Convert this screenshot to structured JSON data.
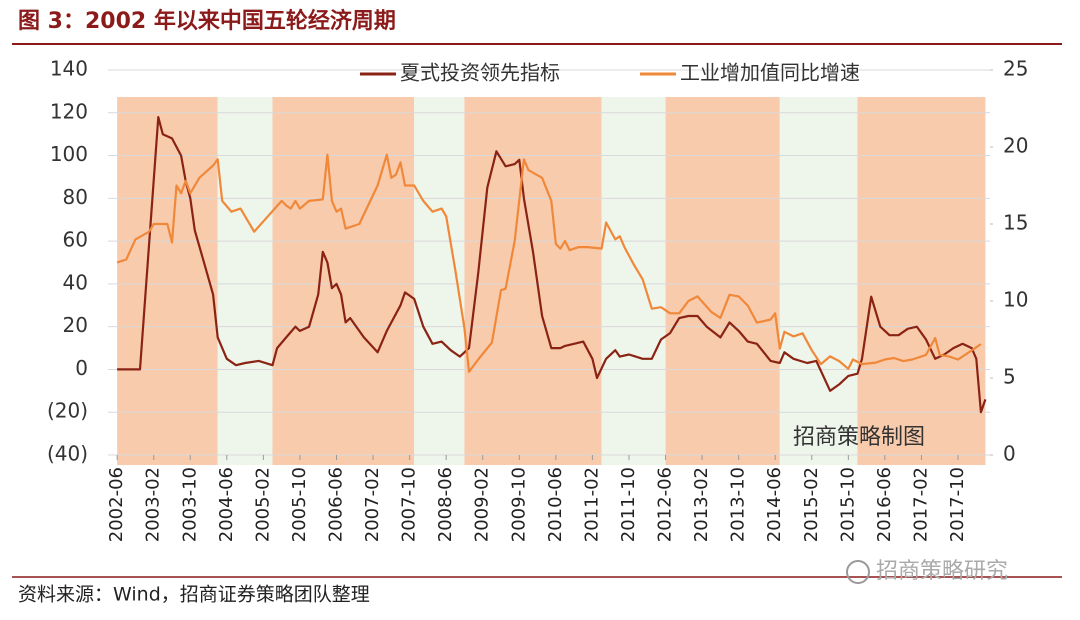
{
  "chart_data": {
    "type": "line",
    "title": "图 3：2002 年以来中国五轮经济周期",
    "source": "资料来源：Wind，招商证券策略团队整理",
    "annotation": "招商策略制图",
    "watermark": "招商策略研究",
    "xlim": [
      "2002-04",
      "2018-05"
    ],
    "xticks": [
      "2002-06",
      "2003-02",
      "2003-10",
      "2004-06",
      "2005-02",
      "2005-10",
      "2006-06",
      "2007-02",
      "2007-10",
      "2008-06",
      "2009-02",
      "2009-10",
      "2010-06",
      "2011-02",
      "2011-10",
      "2012-06",
      "2013-02",
      "2013-10",
      "2014-06",
      "2015-02",
      "2015-10",
      "2016-06",
      "2017-02",
      "2017-10"
    ],
    "ylim": [
      -40,
      140
    ],
    "yticks": [
      140,
      120,
      100,
      80,
      60,
      40,
      20,
      0,
      {
        "value": -20,
        "label": "(20)"
      },
      {
        "value": -40,
        "label": "(40)"
      }
    ],
    "y2lim": [
      0,
      25
    ],
    "y2ticks": [
      0,
      5,
      10,
      15,
      20,
      25
    ],
    "grid": true,
    "shaded_regions": [
      {
        "start": "2002-06",
        "end": "2004-04",
        "color": "#f8cbad"
      },
      {
        "start": "2004-04",
        "end": "2005-04",
        "color": "#eef5ea"
      },
      {
        "start": "2005-04",
        "end": "2007-11",
        "color": "#f8cbad"
      },
      {
        "start": "2007-11",
        "end": "2008-10",
        "color": "#eef5ea"
      },
      {
        "start": "2008-10",
        "end": "2011-04",
        "color": "#f8cbad"
      },
      {
        "start": "2011-04",
        "end": "2012-06",
        "color": "#eef5ea"
      },
      {
        "start": "2012-06",
        "end": "2014-07",
        "color": "#f8cbad"
      },
      {
        "start": "2014-07",
        "end": "2015-12",
        "color": "#eef5ea"
      },
      {
        "start": "2015-12",
        "end": "2018-04",
        "color": "#f8cbad"
      }
    ],
    "series": [
      {
        "name": "夏式投资领先指标",
        "color": "#8b2314",
        "x": [
          "2002-06",
          "2002-11",
          "2003-03",
          "2003-04",
          "2003-06",
          "2003-08",
          "2003-09",
          "2003-10",
          "2003-11",
          "2004-01",
          "2004-03",
          "2004-04",
          "2004-06",
          "2004-08",
          "2004-10",
          "2005-01",
          "2005-04",
          "2005-05",
          "2005-07",
          "2005-09",
          "2005-10",
          "2005-12",
          "2006-02",
          "2006-03",
          "2006-04",
          "2006-05",
          "2006-06",
          "2006-07",
          "2006-08",
          "2006-09",
          "2006-12",
          "2007-03",
          "2007-05",
          "2007-08",
          "2007-09",
          "2007-11",
          "2008-01",
          "2008-03",
          "2008-05",
          "2008-07",
          "2008-09",
          "2008-11",
          "2009-01",
          "2009-03",
          "2009-05",
          "2009-07",
          "2009-09",
          "2009-10",
          "2009-11",
          "2010-01",
          "2010-03",
          "2010-05",
          "2010-07",
          "2010-08",
          "2010-10",
          "2010-12",
          "2011-02",
          "2011-03",
          "2011-05",
          "2011-07",
          "2011-08",
          "2011-10",
          "2012-01",
          "2012-03",
          "2012-05",
          "2012-07",
          "2012-09",
          "2012-11",
          "2013-01",
          "2013-03",
          "2013-06",
          "2013-08",
          "2013-10",
          "2013-12",
          "2014-02",
          "2014-05",
          "2014-07",
          "2014-08",
          "2014-10",
          "2015-01",
          "2015-03",
          "2015-06",
          "2015-08",
          "2015-10",
          "2015-12",
          "2016-01",
          "2016-03",
          "2016-05",
          "2016-07",
          "2016-09",
          "2016-11",
          "2017-01",
          "2017-03",
          "2017-05",
          "2017-07",
          "2017-09",
          "2017-11",
          "2018-01",
          "2018-02",
          "2018-03",
          "2018-04"
        ],
        "values": [
          0,
          0,
          118,
          110,
          108,
          100,
          88,
          80,
          65,
          50,
          35,
          15,
          5,
          2,
          3,
          4,
          2,
          10,
          15,
          20,
          18,
          20,
          35,
          55,
          50,
          38,
          40,
          35,
          22,
          24,
          15,
          8,
          18,
          30,
          36,
          33,
          20,
          12,
          13,
          9,
          6,
          10,
          45,
          85,
          102,
          95,
          96,
          98,
          80,
          55,
          25,
          10,
          10,
          11,
          12,
          13,
          5,
          -4,
          5,
          9,
          6,
          7,
          5,
          5,
          14,
          17,
          24,
          25,
          25,
          20,
          15,
          22,
          18,
          13,
          12,
          4,
          3,
          8,
          5,
          3,
          4,
          -10,
          -7,
          -3,
          -2,
          5,
          34,
          20,
          16,
          16,
          19,
          20,
          14,
          5,
          7,
          10,
          12,
          10,
          5,
          -20,
          -14
        ]
      },
      {
        "name": "工业增加值同比增速",
        "color": "#f0883a",
        "axis": "y2",
        "x": [
          "2002-06",
          "2002-08",
          "2002-10",
          "2003-01",
          "2003-02",
          "2003-05",
          "2003-06",
          "2003-07",
          "2003-08",
          "2003-09",
          "2003-10",
          "2003-12",
          "2004-03",
          "2004-04",
          "2004-05",
          "2004-07",
          "2004-09",
          "2004-12",
          "2005-03",
          "2005-06",
          "2005-07",
          "2005-08",
          "2005-09",
          "2005-10",
          "2005-12",
          "2006-03",
          "2006-04",
          "2006-05",
          "2006-06",
          "2006-07",
          "2006-08",
          "2006-09",
          "2006-11",
          "2007-03",
          "2007-05",
          "2007-06",
          "2007-07",
          "2007-08",
          "2007-09",
          "2007-11",
          "2008-01",
          "2008-03",
          "2008-05",
          "2008-06",
          "2008-08",
          "2008-10",
          "2008-11",
          "2009-01",
          "2009-04",
          "2009-06",
          "2009-07",
          "2009-09",
          "2009-11",
          "2009-12",
          "2010-03",
          "2010-05",
          "2010-06",
          "2010-07",
          "2010-08",
          "2010-09",
          "2010-11",
          "2011-01",
          "2011-04",
          "2011-05",
          "2011-07",
          "2011-08",
          "2011-09",
          "2011-11",
          "2012-01",
          "2012-03",
          "2012-05",
          "2012-07",
          "2012-09",
          "2012-11",
          "2013-01",
          "2013-04",
          "2013-06",
          "2013-08",
          "2013-10",
          "2013-12",
          "2014-02",
          "2014-05",
          "2014-06",
          "2014-07",
          "2014-08",
          "2014-10",
          "2014-12",
          "2015-02",
          "2015-04",
          "2015-06",
          "2015-08",
          "2015-10",
          "2015-11",
          "2016-01",
          "2016-04",
          "2016-06",
          "2016-08",
          "2016-10",
          "2016-12",
          "2017-03",
          "2017-05",
          "2017-06",
          "2017-08",
          "2017-10",
          "2017-12",
          "2018-03"
        ],
        "values": [
          12.5,
          12.7,
          14,
          14.5,
          15,
          15,
          13.8,
          17.5,
          17,
          17.8,
          17,
          18,
          18.8,
          19.2,
          16.5,
          15.8,
          16,
          14.5,
          15.5,
          16.5,
          16.2,
          16,
          16.5,
          16,
          16.5,
          16.6,
          19.5,
          16.5,
          15.8,
          16,
          14.7,
          14.8,
          15,
          17.5,
          19.5,
          18,
          18.2,
          19,
          17.5,
          17.5,
          16.5,
          15.8,
          16,
          15.5,
          12,
          8.2,
          5.4,
          6.2,
          7.3,
          10.7,
          10.8,
          13.9,
          19.2,
          18.5,
          18,
          16.5,
          13.7,
          13.4,
          13.9,
          13.3,
          13.5,
          13.5,
          13.4,
          15.1,
          14,
          14.2,
          13.5,
          12.4,
          11.4,
          9.5,
          9.6,
          9.2,
          9.2,
          10,
          10.3,
          9.3,
          8.9,
          10.4,
          10.3,
          9.7,
          8.6,
          8.8,
          9.2,
          6.9,
          8,
          7.7,
          7.9,
          6.8,
          5.9,
          6.4,
          6.1,
          5.6,
          6.2,
          5.9,
          6,
          6.2,
          6.3,
          6.1,
          6.2,
          6.5,
          7.6,
          6.5,
          6.4,
          6.2,
          6.6,
          7.2
        ]
      }
    ]
  }
}
